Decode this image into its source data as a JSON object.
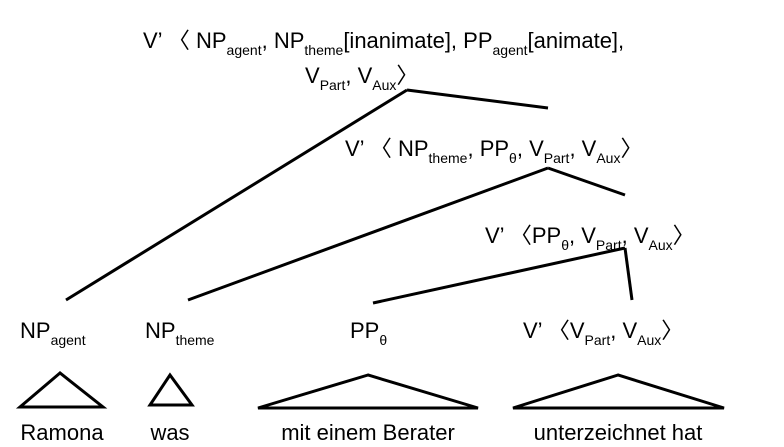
{
  "nodes": [
    {
      "lines": [
        [
          {
            "text": "V’  〈 NP",
            "sub": "agent"
          },
          {
            "text": ", NP",
            "sub": "theme"
          },
          {
            "text": "[inanimate], PP",
            "sub": "agent"
          },
          {
            "text": "[animate],"
          }
        ],
        [
          {
            "text": "V",
            "sub": "Part"
          },
          {
            "text": ", V",
            "sub": "Aux"
          },
          {
            "text": "〉"
          }
        ]
      ]
    },
    {
      "lines": [
        [
          {
            "text": "V’  〈 NP",
            "sub": "theme"
          },
          {
            "text": ", PP",
            "sub": "θ"
          },
          {
            "text": ", V",
            "sub": "Part"
          },
          {
            "text": ", V",
            "sub": "Aux"
          },
          {
            "text": "〉"
          }
        ]
      ]
    },
    {
      "lines": [
        [
          {
            "text": "V’  〈PP",
            "sub": "θ"
          },
          {
            "text": ", V",
            "sub": "Part"
          },
          {
            "text": ", V",
            "sub": "Aux"
          },
          {
            "text": "〉"
          }
        ]
      ]
    },
    {
      "lines": [
        [
          {
            "text": "V’  〈V",
            "sub": "Part"
          },
          {
            "text": ", V",
            "sub": "Aux"
          },
          {
            "text": "〉"
          }
        ]
      ]
    },
    {
      "lines": [
        [
          {
            "text": "NP",
            "sub": "agent"
          }
        ]
      ]
    },
    {
      "lines": [
        [
          {
            "text": "NP",
            "sub": "theme"
          }
        ]
      ]
    },
    {
      "lines": [
        [
          {
            "text": "PP",
            "sub": "θ"
          }
        ]
      ]
    }
  ],
  "words": [
    "Ramona",
    "was",
    "mit einem Berater",
    "unterzeichnet hat"
  ]
}
